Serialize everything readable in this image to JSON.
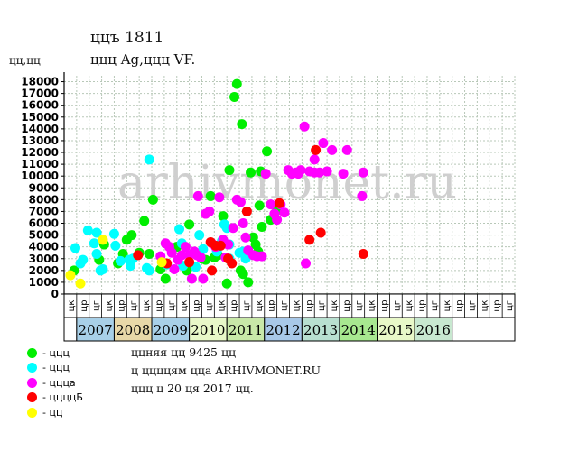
{
  "header": {
    "title": "ццъ 1811",
    "subtitle": "ццц Ag,ццц VF.",
    "units": "цц,цц"
  },
  "watermark": "arhivmonet.ru",
  "legend": [
    {
      "label": "- ццц",
      "color": "#00ee00",
      "icon": "green-dot"
    },
    {
      "label": "- ццц",
      "color": "#00ffff",
      "icon": "cyan-dot"
    },
    {
      "label": "- цццa",
      "color": "#ff00ff",
      "icon": "magenta-dot"
    },
    {
      "label": "- ццццБ",
      "color": "#ff0000",
      "icon": "red-dot"
    },
    {
      "label": "- цц",
      "color": "#ffff00",
      "icon": "yellow-dot"
    }
  ],
  "notes": {
    "line1": "ццняя цц 9425 цц",
    "line2": "ц ццццям цца ARHIVMONET.RU",
    "line3": "ццц ц 20 ця 2017 цц."
  },
  "chart_data": {
    "type": "scatter",
    "ylim": [
      0,
      18500
    ],
    "yticks": [
      0,
      1000,
      2000,
      3000,
      4000,
      5000,
      6000,
      7000,
      8000,
      9000,
      10000,
      11000,
      12000,
      13000,
      14000,
      15000,
      16000,
      17000,
      18000
    ],
    "x_slot_labels": [
      "цк",
      "цр",
      "цг",
      "цк",
      "цр",
      "цг",
      "цк",
      "цр",
      "цг",
      "цк",
      "цр",
      "цг",
      "цк",
      "цр",
      "цг",
      "цк",
      "цр",
      "цг",
      "цк",
      "цр",
      "цг",
      "цк",
      "цр",
      "цг",
      "цк",
      "цр",
      "цг",
      "цк",
      "цр",
      "цг",
      "цк",
      "цр",
      "цг",
      "цк",
      "цр",
      "цг"
    ],
    "years": [
      "2007",
      "2008",
      "2009",
      "2010",
      "2011",
      "2012",
      "2013",
      "2014",
      "2015",
      "2016"
    ],
    "year_colors": [
      "#a8d0e8",
      "#e8d8a8",
      "#a8d0e8",
      "#e8f8c8",
      "#c8e8a8",
      "#a8c8e8",
      "#b8e0d0",
      "#a8e890",
      "#e8f8c8",
      "#c8e8d0"
    ],
    "series": [
      {
        "name": "green",
        "color": "#00ee00",
        "points": [
          [
            0.3,
            2000
          ],
          [
            2.3,
            2900
          ],
          [
            2.7,
            4200
          ],
          [
            3.8,
            2600
          ],
          [
            4.2,
            3400
          ],
          [
            4.5,
            4600
          ],
          [
            4.9,
            5000
          ],
          [
            5.5,
            3500
          ],
          [
            5.9,
            6200
          ],
          [
            6.3,
            3400
          ],
          [
            6.6,
            8000
          ],
          [
            7.2,
            2100
          ],
          [
            7.6,
            1300
          ],
          [
            8.5,
            4000
          ],
          [
            9.3,
            2000
          ],
          [
            9.5,
            5900
          ],
          [
            10.5,
            3000
          ],
          [
            10.8,
            2900
          ],
          [
            11.2,
            8300
          ],
          [
            11.5,
            3100
          ],
          [
            11.8,
            3300
          ],
          [
            12.2,
            6600
          ],
          [
            12.5,
            900
          ],
          [
            12.7,
            10500
          ],
          [
            13.1,
            16700
          ],
          [
            13.3,
            17800
          ],
          [
            13.7,
            14400
          ],
          [
            13.6,
            2000
          ],
          [
            13.8,
            1700
          ],
          [
            14.2,
            1000
          ],
          [
            14.4,
            10300
          ],
          [
            14.6,
            4800
          ],
          [
            14.8,
            4200
          ],
          [
            15.0,
            3600
          ],
          [
            15.1,
            7500
          ],
          [
            15.2,
            10400
          ],
          [
            15.3,
            5700
          ],
          [
            15.7,
            12100
          ],
          [
            16.0,
            6300
          ],
          [
            16.3,
            6600
          ],
          [
            16.5,
            7100
          ]
        ]
      },
      {
        "name": "cyan",
        "color": "#00ffff",
        "points": [
          [
            0.4,
            3900
          ],
          [
            0.8,
            2600
          ],
          [
            1.0,
            2900
          ],
          [
            1.4,
            5400
          ],
          [
            1.9,
            4300
          ],
          [
            2.1,
            3400
          ],
          [
            2.1,
            5200
          ],
          [
            2.4,
            2000
          ],
          [
            2.6,
            2100
          ],
          [
            3.5,
            5100
          ],
          [
            3.6,
            4100
          ],
          [
            4.0,
            2800
          ],
          [
            4.7,
            2900
          ],
          [
            4.8,
            2400
          ],
          [
            5.0,
            3000
          ],
          [
            6.1,
            2200
          ],
          [
            6.3,
            2000
          ],
          [
            6.3,
            11400
          ],
          [
            7.7,
            2500
          ],
          [
            8.7,
            5500
          ],
          [
            8.9,
            4300
          ],
          [
            9.0,
            2400
          ],
          [
            10.0,
            2300
          ],
          [
            10.3,
            5000
          ],
          [
            10.6,
            3800
          ],
          [
            11.7,
            3600
          ],
          [
            12.1,
            4500
          ],
          [
            12.3,
            5900
          ],
          [
            12.5,
            5600
          ],
          [
            12.7,
            4200
          ],
          [
            12.7,
            3000
          ],
          [
            13.5,
            3500
          ],
          [
            13.8,
            3600
          ],
          [
            14.0,
            3000
          ]
        ]
      },
      {
        "name": "magenta",
        "color": "#ff00ff",
        "points": [
          [
            7.2,
            3200
          ],
          [
            7.6,
            4300
          ],
          [
            7.9,
            4000
          ],
          [
            8.1,
            3500
          ],
          [
            8.3,
            2100
          ],
          [
            8.6,
            2900
          ],
          [
            8.9,
            3300
          ],
          [
            9.2,
            4000
          ],
          [
            9.5,
            3300
          ],
          [
            9.7,
            1300
          ],
          [
            9.9,
            3600
          ],
          [
            10.1,
            3300
          ],
          [
            10.2,
            8300
          ],
          [
            10.4,
            3100
          ],
          [
            10.6,
            1300
          ],
          [
            10.8,
            6800
          ],
          [
            11.1,
            7000
          ],
          [
            11.3,
            4300
          ],
          [
            11.6,
            4000
          ],
          [
            11.9,
            8200
          ],
          [
            12.2,
            4600
          ],
          [
            12.4,
            3100
          ],
          [
            12.6,
            4200
          ],
          [
            13.0,
            5600
          ],
          [
            13.3,
            8000
          ],
          [
            13.6,
            7800
          ],
          [
            13.8,
            6000
          ],
          [
            14.0,
            4800
          ],
          [
            14.2,
            3700
          ],
          [
            14.6,
            3300
          ],
          [
            14.9,
            3200
          ],
          [
            15.3,
            3200
          ],
          [
            15.6,
            10200
          ],
          [
            16.0,
            7600
          ],
          [
            16.3,
            6800
          ],
          [
            16.5,
            6300
          ],
          [
            16.8,
            7600
          ],
          [
            17.1,
            6900
          ],
          [
            17.4,
            10500
          ],
          [
            17.7,
            10200
          ],
          [
            18.0,
            10300
          ],
          [
            18.2,
            10200
          ],
          [
            18.4,
            10500
          ],
          [
            18.7,
            14200
          ],
          [
            18.8,
            2600
          ],
          [
            19.1,
            10400
          ],
          [
            19.5,
            10300
          ],
          [
            19.5,
            11400
          ],
          [
            19.9,
            10300
          ],
          [
            20.2,
            12800
          ],
          [
            20.5,
            10400
          ],
          [
            20.9,
            12200
          ],
          [
            21.8,
            10200
          ],
          [
            22.1,
            12200
          ],
          [
            23.3,
            8300
          ],
          [
            23.4,
            10300
          ]
        ]
      },
      {
        "name": "red",
        "color": "#ff0000",
        "points": [
          [
            5.4,
            3300
          ],
          [
            7.7,
            2600
          ],
          [
            9.5,
            2700
          ],
          [
            11.2,
            4400
          ],
          [
            11.3,
            2000
          ],
          [
            11.6,
            4100
          ],
          [
            12.0,
            4100
          ],
          [
            12.6,
            3000
          ],
          [
            12.9,
            2600
          ],
          [
            14.1,
            7000
          ],
          [
            16.7,
            7700
          ],
          [
            19.1,
            4600
          ],
          [
            19.6,
            12200
          ],
          [
            20.0,
            5200
          ],
          [
            23.4,
            3400
          ]
        ]
      },
      {
        "name": "yellow",
        "color": "#ffff00",
        "points": [
          [
            0.0,
            1600
          ],
          [
            0.8,
            900
          ],
          [
            2.6,
            4600
          ],
          [
            7.3,
            2700
          ]
        ]
      }
    ]
  }
}
